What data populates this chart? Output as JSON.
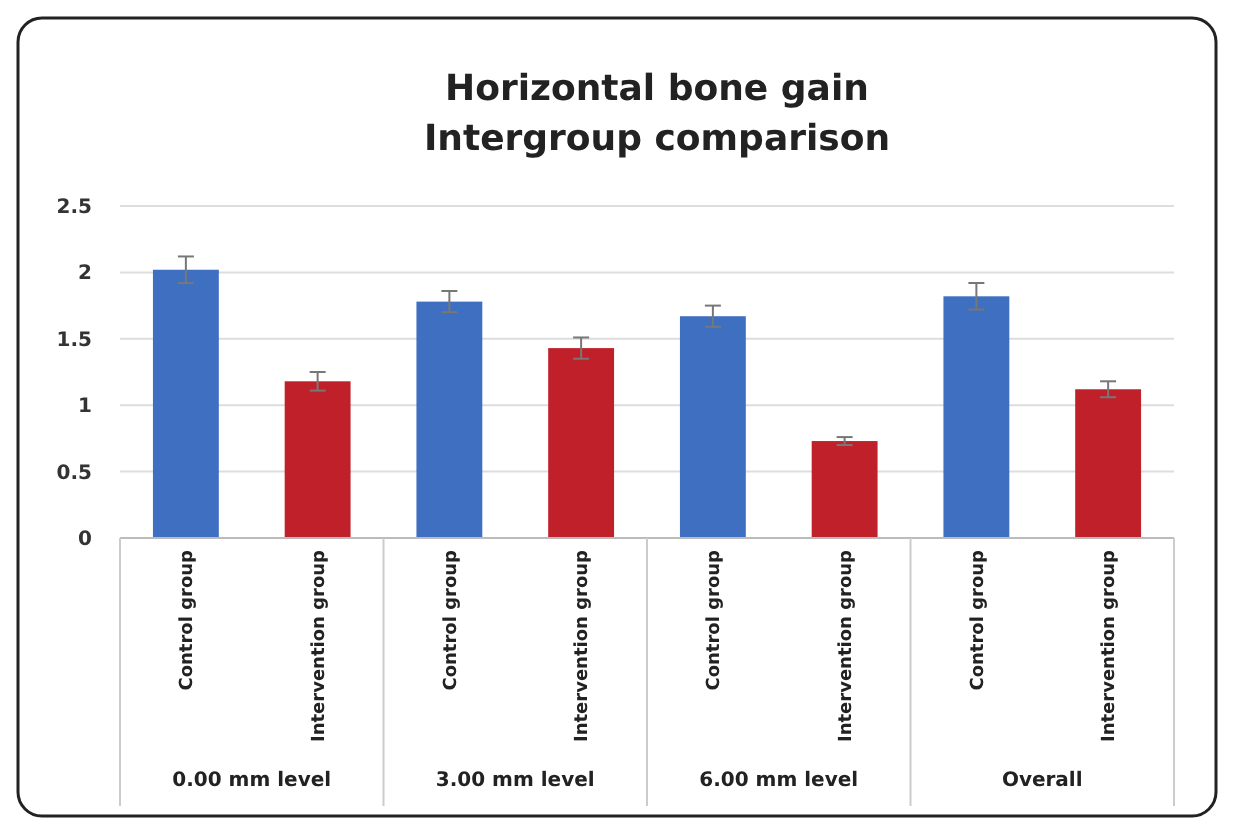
{
  "chart_data": {
    "type": "bar",
    "title": "Horizontal bone gain",
    "subtitle": "Intergroup comparison",
    "categories": [
      "Control group",
      "Intervention group",
      "Control group",
      "Intervention group",
      "Control group",
      "Intervention group",
      "Control group",
      "Intervention group"
    ],
    "values": [
      2.02,
      1.18,
      1.78,
      1.43,
      1.67,
      0.73,
      1.82,
      1.12
    ],
    "errors": [
      0.1,
      0.07,
      0.08,
      0.08,
      0.08,
      0.03,
      0.1,
      0.06
    ],
    "colors": [
      "#3f6fc0",
      "#c0202a",
      "#3f6fc0",
      "#c0202a",
      "#3f6fc0",
      "#c0202a",
      "#3f6fc0",
      "#c0202a"
    ],
    "ylim": [
      0,
      2.5
    ],
    "yticks": [
      0,
      0.5,
      1,
      1.5,
      2,
      2.5
    ],
    "grid": "y",
    "annotations": [
      "0.00 mm level",
      "3.00 mm level",
      "6.00 mm level",
      "Overall"
    ]
  }
}
